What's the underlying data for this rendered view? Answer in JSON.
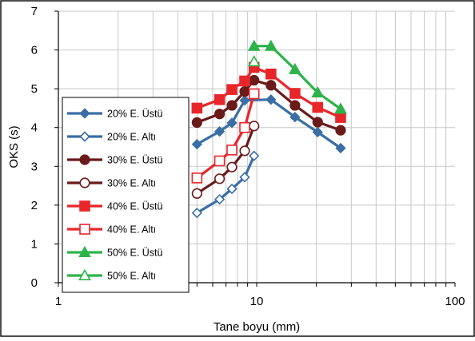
{
  "chart_data": {
    "type": "line",
    "xscale": "log",
    "xlim": [
      1,
      100
    ],
    "ylim": [
      0,
      7
    ],
    "xticks": [
      1,
      10,
      100
    ],
    "xtick_labels": [
      "1",
      "10",
      "100"
    ],
    "yticks": [
      0,
      1,
      2,
      3,
      4,
      5,
      6,
      7
    ],
    "ytick_labels": [
      "0",
      "1",
      "2",
      "3",
      "4",
      "5",
      "6",
      "7"
    ],
    "xlabel": "Tane boyu (mm)",
    "ylabel": "OKS (s)",
    "grid": true,
    "legend_position": "left",
    "series": [
      {
        "name": "20% E. Üstü",
        "color": "#3a6ea5",
        "marker": "diamond",
        "filled": true,
        "x": [
          5,
          6.5,
          7.5,
          8.7,
          11.8,
          15.6,
          20.3,
          26.5
        ],
        "y": [
          3.57,
          3.9,
          4.12,
          4.7,
          4.72,
          4.27,
          3.88,
          3.47
        ]
      },
      {
        "name": "20% E. Altı",
        "color": "#3a6ea5",
        "marker": "diamond",
        "filled": false,
        "x": [
          5,
          6.5,
          7.5,
          8.7,
          9.7
        ],
        "y": [
          1.8,
          2.15,
          2.42,
          2.72,
          3.27
        ]
      },
      {
        "name": "30% E. Üstü",
        "color": "#6b1a1a",
        "marker": "circle",
        "filled": true,
        "x": [
          5,
          6.5,
          7.5,
          8.7,
          9.7,
          11.8,
          15.6,
          20.3,
          26.5
        ],
        "y": [
          4.13,
          4.35,
          4.57,
          4.93,
          5.22,
          5.09,
          4.57,
          4.14,
          3.93
        ]
      },
      {
        "name": "30% E. Altı",
        "color": "#6b1a1a",
        "marker": "circle",
        "filled": false,
        "x": [
          5,
          6.5,
          7.5,
          8.7,
          9.7
        ],
        "y": [
          2.3,
          2.68,
          2.98,
          3.4,
          4.04
        ]
      },
      {
        "name": "40% E. Üstü",
        "color": "#e8262a",
        "marker": "square",
        "filled": true,
        "x": [
          5,
          6.5,
          7.5,
          8.7,
          9.7,
          11.8,
          15.6,
          20.3,
          26.5
        ],
        "y": [
          4.5,
          4.72,
          4.98,
          5.2,
          5.55,
          5.38,
          4.88,
          4.52,
          4.26
        ]
      },
      {
        "name": "40% E. Altı",
        "color": "#e8262a",
        "marker": "square",
        "filled": false,
        "x": [
          5,
          6.5,
          7.5,
          8.7,
          9.7
        ],
        "y": [
          2.7,
          3.14,
          3.42,
          4.0,
          4.87
        ]
      },
      {
        "name": "50% E. Üstü",
        "color": "#2db34a",
        "marker": "triangle",
        "filled": true,
        "x": [
          9.7,
          11.8,
          15.6,
          20.3,
          26.5
        ],
        "y": [
          6.1,
          6.1,
          5.5,
          4.9,
          4.48
        ]
      },
      {
        "name": "50% E. Altı",
        "color": "#2db34a",
        "marker": "triangle",
        "filled": false,
        "x": [
          9.7
        ],
        "y": [
          5.7
        ]
      }
    ]
  }
}
